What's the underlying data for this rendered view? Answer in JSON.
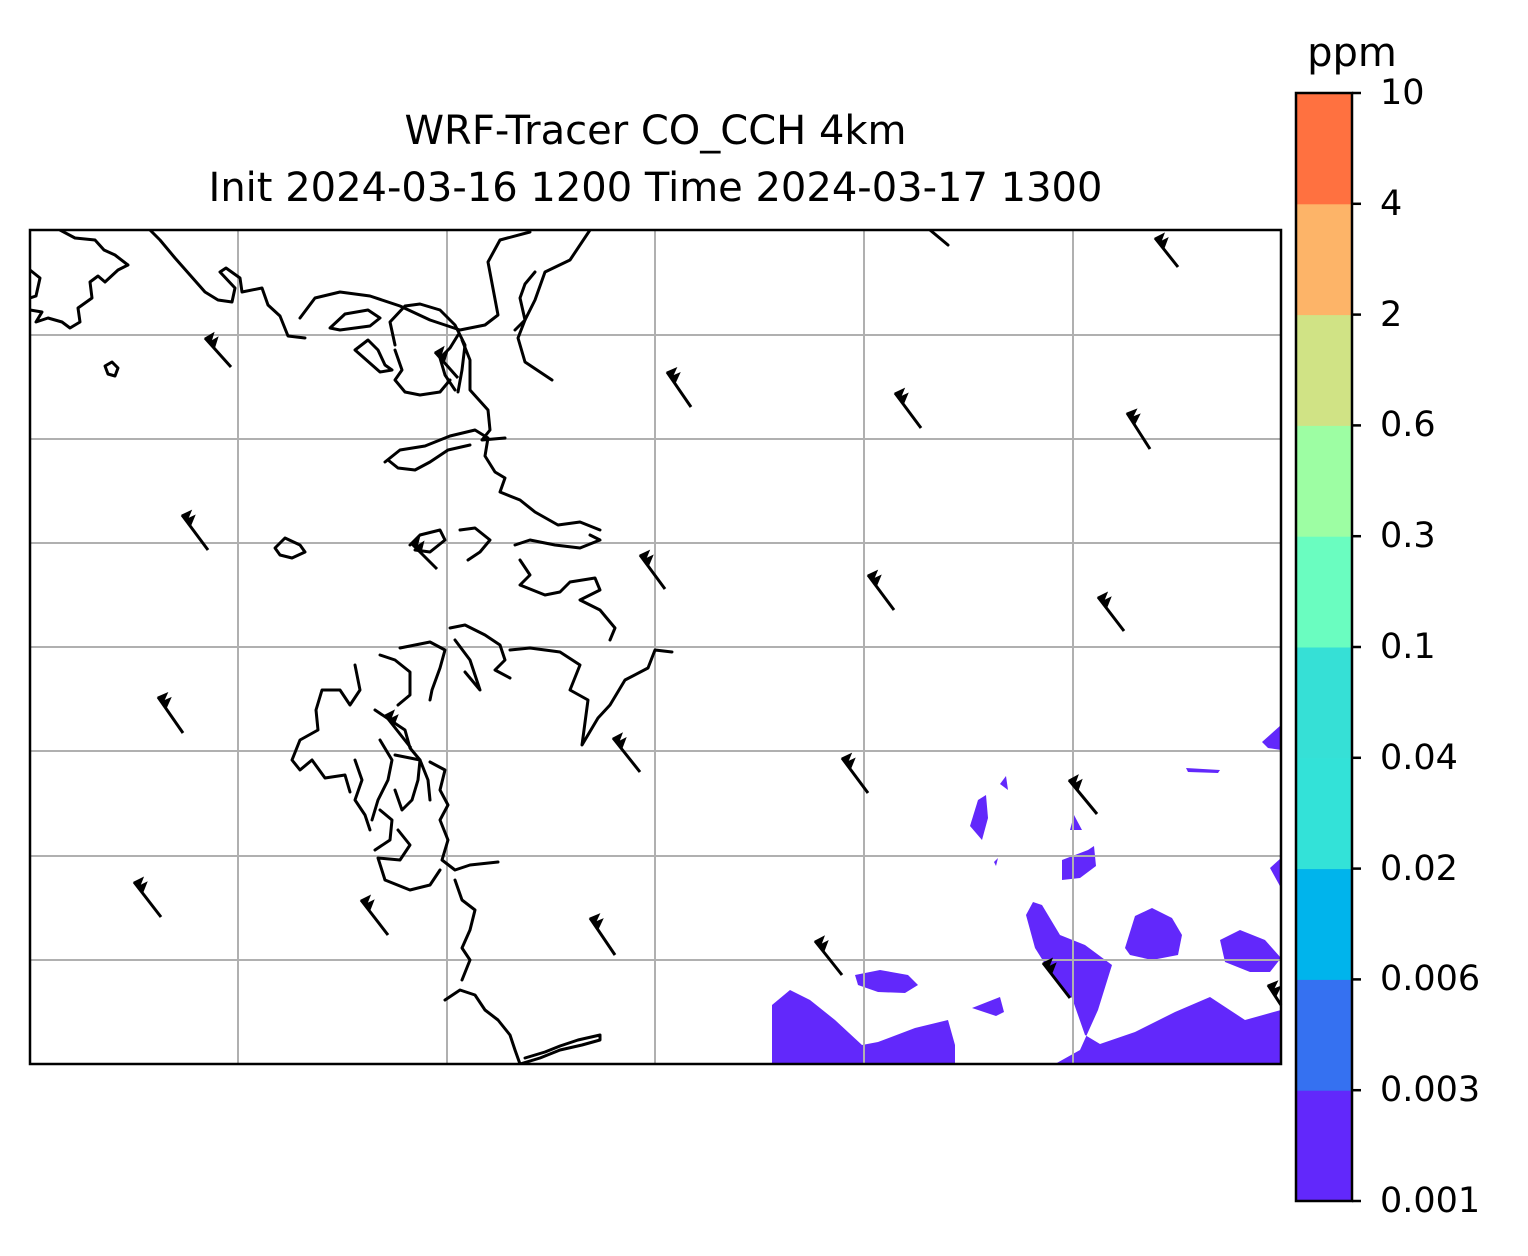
{
  "title": {
    "line1": "WRF-Tracer CO_CCH 4km",
    "line2": "Init 2024-03-16 1200 Time 2024-03-17 1300"
  },
  "colorbar": {
    "unit": "ppm",
    "levels": [
      "0.001",
      "0.003",
      "0.006",
      "0.02",
      "0.04",
      "0.1",
      "0.3",
      "0.6",
      "2",
      "4",
      "10"
    ],
    "colors": [
      "#6228fb",
      "#3571f1",
      "#00b4ec",
      "#33e2d8",
      "#36e0d6",
      "#6afdc0",
      "#9dfea3",
      "#d0e385",
      "#fdb468",
      "#ff7140",
      "#ff2a17"
    ]
  },
  "map": {
    "background": "#ffffff",
    "gridline_color": "#b0b0b0",
    "coastline_color": "#000000",
    "tracer_fill_color": "#6228fb",
    "wind_barb_color": "#000000"
  }
}
